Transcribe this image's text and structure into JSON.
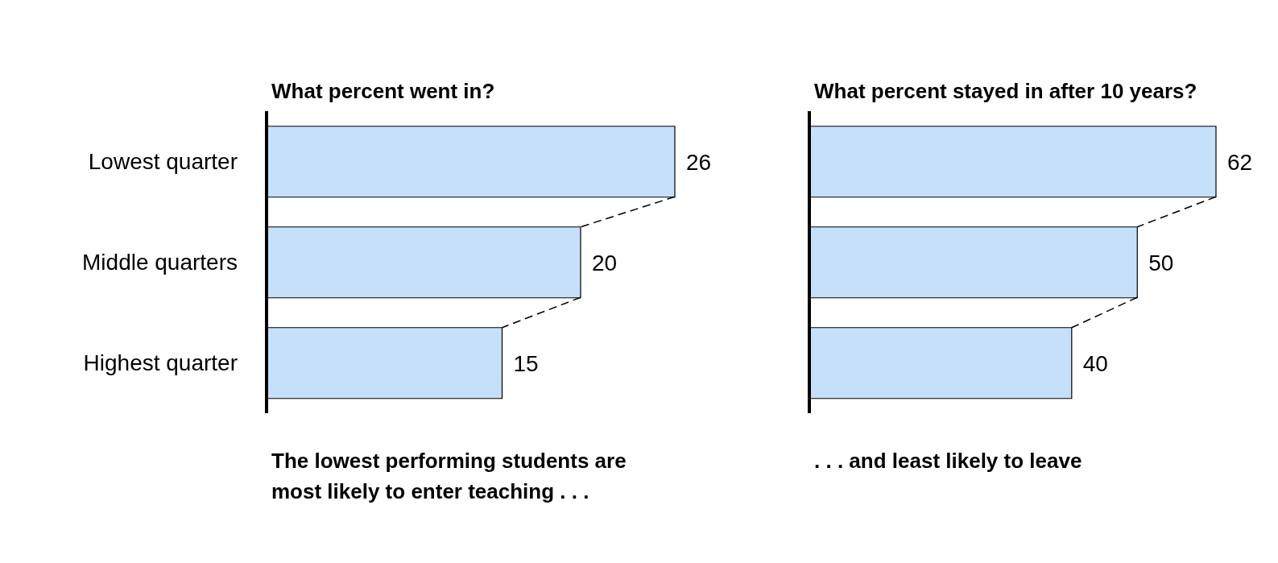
{
  "chart_data": [
    {
      "type": "bar",
      "orientation": "horizontal",
      "title": "What percent went in?",
      "categories": [
        "Lowest quarter",
        "Middle quarters",
        "Highest quarter"
      ],
      "series": [
        {
          "color": "#c6e0f9",
          "values": [
            26,
            20,
            15
          ]
        }
      ],
      "data_labels": true,
      "tick_labels": "y",
      "annotations": [
        "The lowest performing students are most likely to enter teaching . . ."
      ]
    },
    {
      "type": "bar",
      "orientation": "horizontal",
      "title": "What percent stayed in after 10 years?",
      "categories": [
        null,
        null,
        null
      ],
      "series": [
        {
          "color": "#c6e0f9",
          "values": [
            62,
            50,
            40
          ]
        }
      ],
      "data_labels": true,
      "tick_labels": false,
      "annotations": [
        ". . . and least likely to leave"
      ]
    }
  ]
}
